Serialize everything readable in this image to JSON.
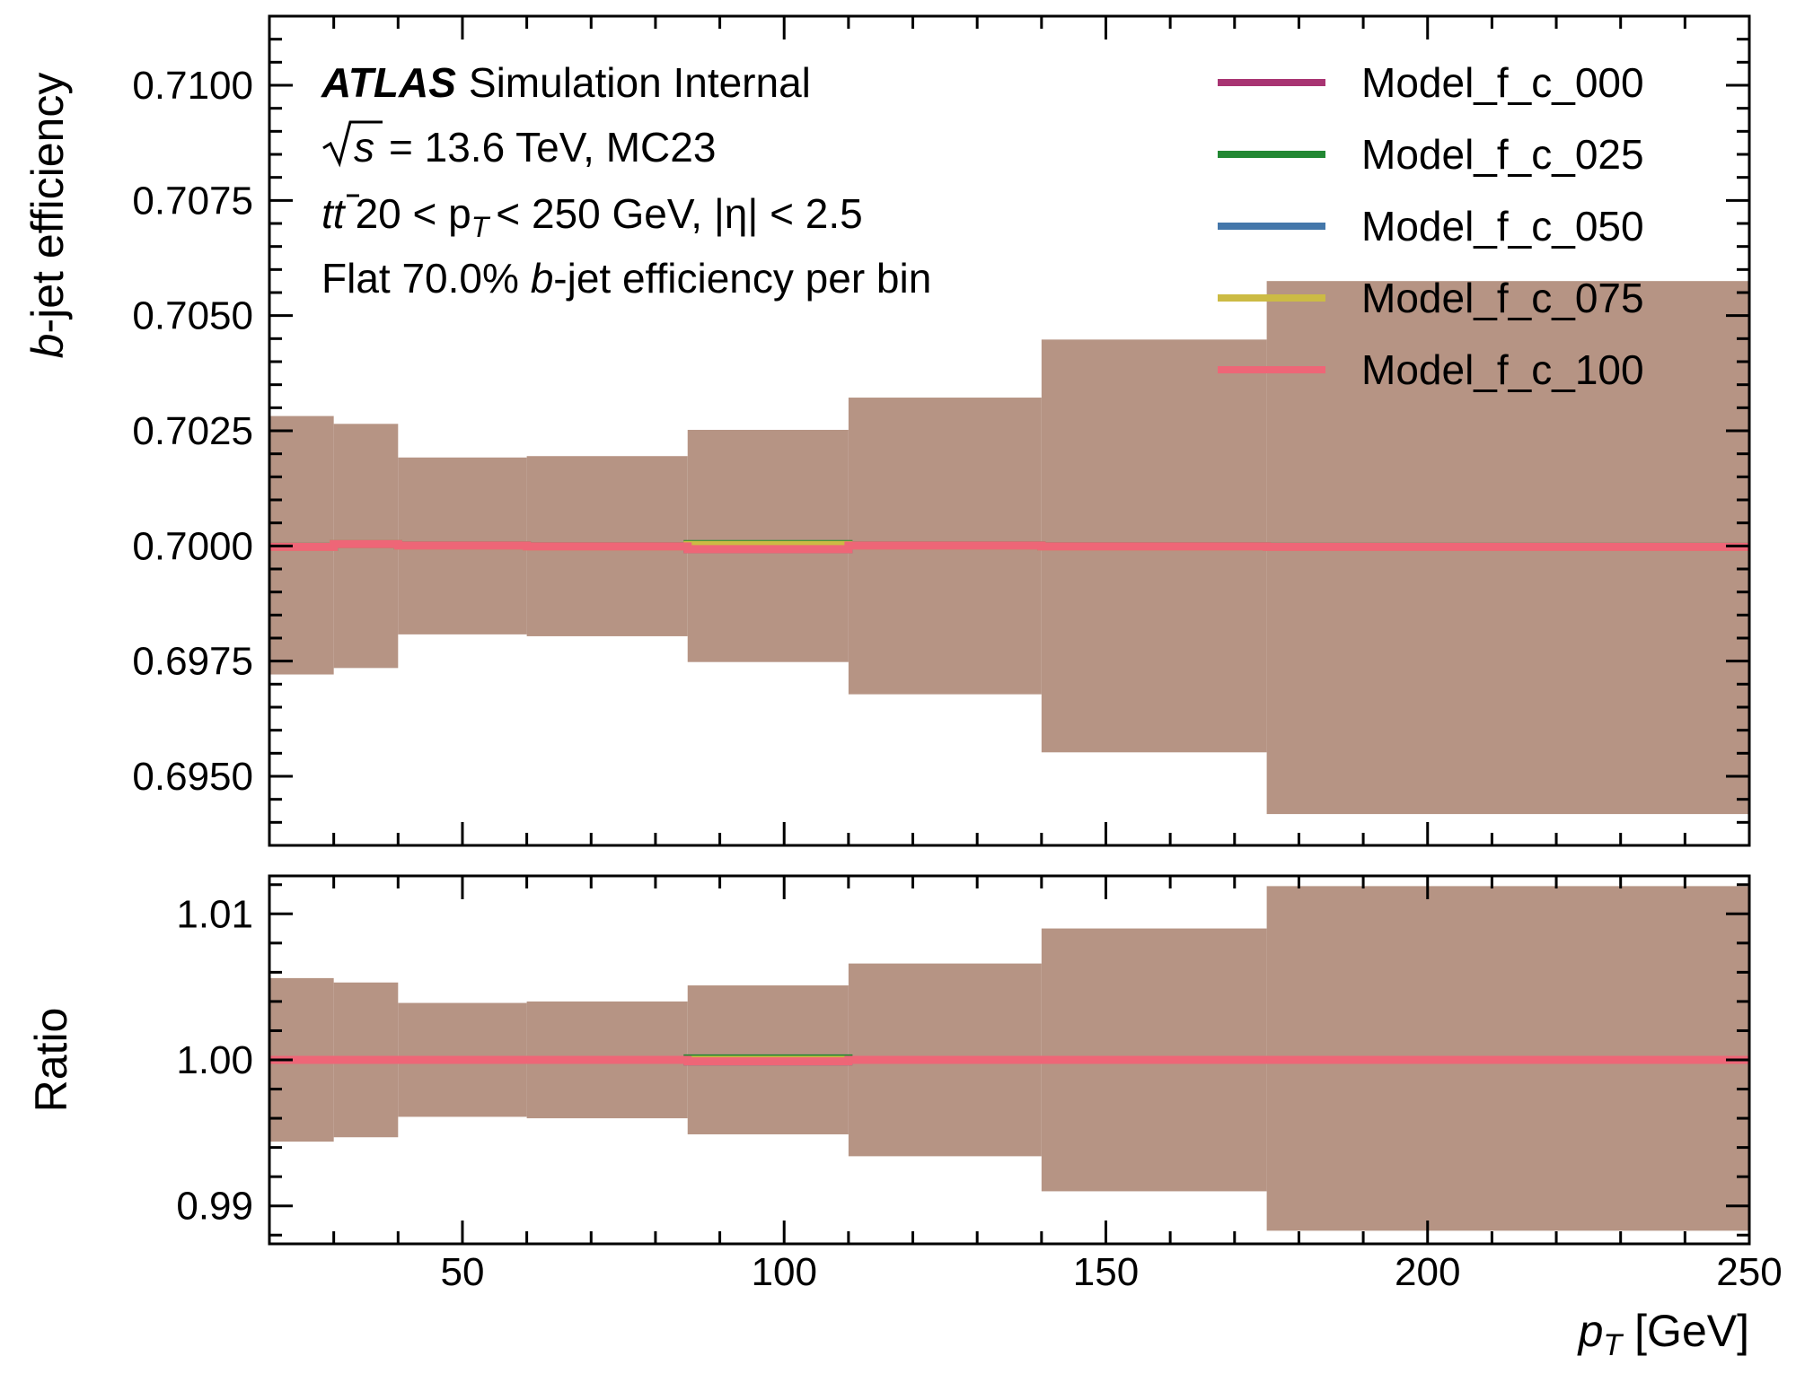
{
  "chart_data": {
    "type": "line",
    "experiment": "ATLAS",
    "experiment_suffix": "Simulation Internal",
    "annotations": {
      "energy": {
        "sqrt_s": "s",
        "rest": "= 13.6 TeV, MC23"
      },
      "selection": {
        "process": "tt",
        "mid": "20 < p",
        "sub": "T",
        "end": "< 250 GeV, |η| < 2.5"
      },
      "wp": {
        "pre": "Flat 70.0% ",
        "b": "b",
        "post": "-jet efficiency per bin"
      }
    },
    "x_axis": {
      "label_var": "p",
      "label_sub": "T",
      "label_unit": "[GeV]",
      "range": [
        20,
        250
      ],
      "ticks": [
        50,
        100,
        150,
        200,
        250
      ],
      "tick_labels": [
        "50",
        "100",
        "150",
        "200",
        "250"
      ]
    },
    "top_panel": {
      "ylabel_b": "b",
      "ylabel_rest": "-jet efficiency",
      "ylim": [
        0.6935,
        0.7115
      ],
      "ticks": [
        0.695,
        0.6975,
        0.7,
        0.7025,
        0.705,
        0.7075,
        0.71
      ],
      "tick_labels": [
        "0.6950",
        "0.6975",
        "0.7000",
        "0.7025",
        "0.7050",
        "0.7075",
        "0.7100"
      ]
    },
    "ratio_panel": {
      "ylabel": "Ratio",
      "ylim": [
        0.9874,
        1.0126
      ],
      "ticks": [
        0.99,
        1.0,
        1.01
      ],
      "tick_labels": [
        "0.99",
        "1.00",
        "1.01"
      ]
    },
    "bin_edges": [
      20,
      30,
      40,
      60,
      85,
      110,
      140,
      175,
      250
    ],
    "band": {
      "color": "#b69484",
      "upper": [
        0.70282,
        0.70265,
        0.70192,
        0.70195,
        0.70252,
        0.70322,
        0.70448,
        0.70575
      ],
      "lower": [
        0.69721,
        0.69735,
        0.69808,
        0.69804,
        0.69748,
        0.69678,
        0.69552,
        0.69418
      ],
      "ratio_upper": [
        1.0056,
        1.0053,
        1.0039,
        1.004,
        1.0051,
        1.0066,
        1.009,
        1.0119
      ],
      "ratio_lower": [
        0.9944,
        0.9947,
        0.9961,
        0.996,
        0.9949,
        0.9934,
        0.991,
        0.9883
      ]
    },
    "series": [
      {
        "name": "Model_f_c_000",
        "color": "#a83472",
        "values": [
          0.69998,
          0.70004,
          0.70001,
          0.69999,
          0.69993,
          0.70001,
          0.69999,
          0.69998
        ],
        "ratio": [
          1.0,
          1.0,
          1.0,
          1.0,
          0.9999,
          1.0,
          1.0,
          1.0
        ]
      },
      {
        "name": "Model_f_c_025",
        "color": "#228833",
        "values": [
          0.69998,
          0.70004,
          0.70001,
          0.69999,
          0.70004,
          0.70001,
          0.69999,
          0.69998
        ],
        "ratio": [
          1.0,
          1.0,
          1.0,
          1.0,
          1.0001,
          1.0,
          1.0,
          1.0
        ]
      },
      {
        "name": "Model_f_c_050",
        "color": "#4477aa",
        "values": [
          0.69998,
          0.70004,
          0.70001,
          0.69999,
          0.69995,
          0.70001,
          0.69999,
          0.69998
        ],
        "ratio": [
          1.0,
          1.0,
          1.0,
          1.0,
          0.9999,
          1.0,
          1.0,
          1.0
        ]
      },
      {
        "name": "Model_f_c_075",
        "color": "#ccbb44",
        "values": [
          0.69998,
          0.70004,
          0.70001,
          0.69999,
          0.70002,
          0.70001,
          0.69999,
          0.69998
        ],
        "ratio": [
          1.0,
          1.0,
          1.0,
          1.0,
          1.0,
          1.0,
          1.0,
          1.0
        ]
      },
      {
        "name": "Model_f_c_100",
        "color": "#ee6677",
        "values": [
          0.69998,
          0.70004,
          0.70001,
          0.69999,
          0.69993,
          0.70001,
          0.69999,
          0.69998
        ],
        "ratio": [
          1.0,
          1.0,
          1.0,
          1.0,
          0.9999,
          1.0,
          1.0,
          1.0
        ]
      }
    ],
    "legend_placement": "top-right",
    "grid": false
  }
}
